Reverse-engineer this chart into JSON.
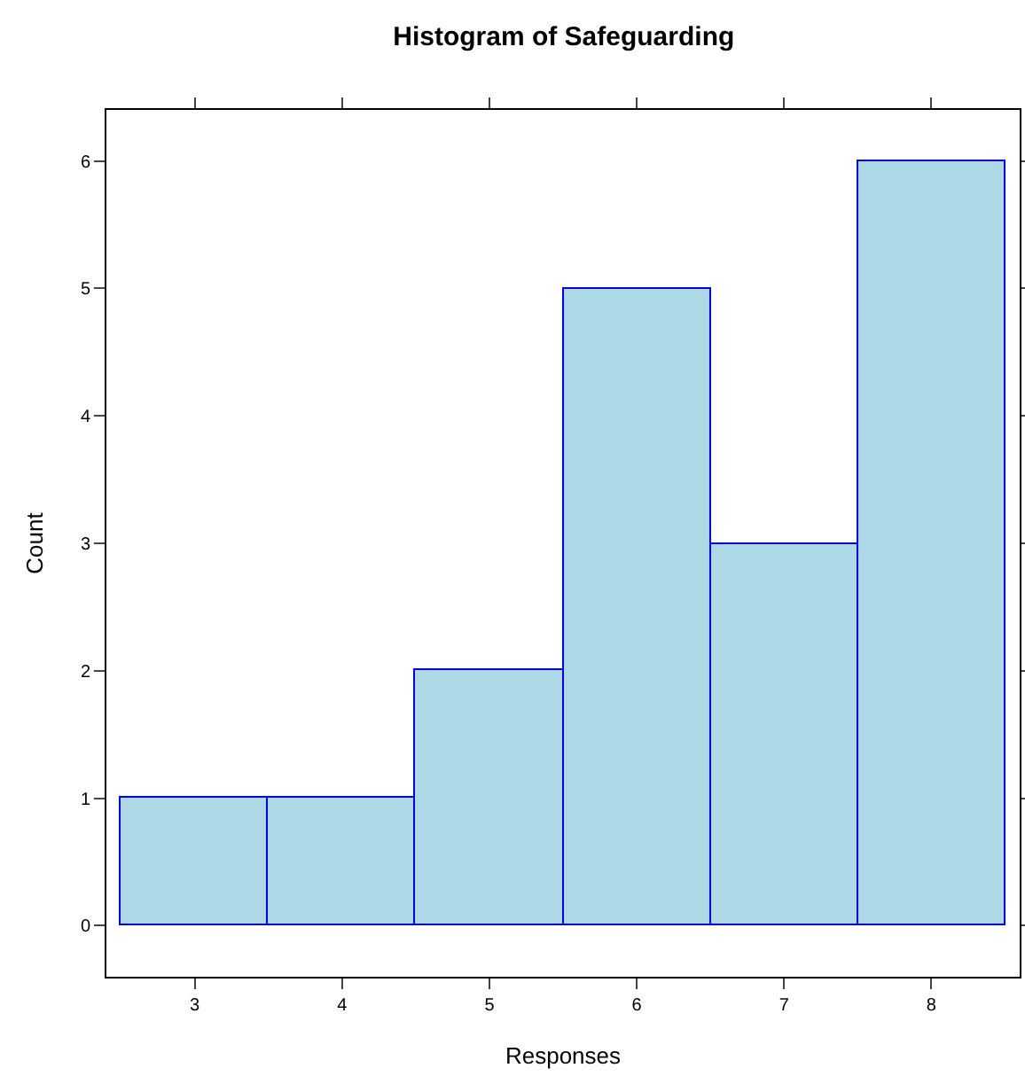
{
  "chart_data": {
    "type": "histogram",
    "title": "Histogram of Safeguarding",
    "xlabel": "Responses",
    "ylabel": "Count",
    "bins": [
      2.5,
      3.5,
      4.5,
      5.5,
      6.5,
      7.5,
      8.5
    ],
    "values": [
      1,
      1,
      2,
      5,
      3,
      6
    ],
    "color": "#add8e6",
    "xlim": [
      2.4,
      8.6
    ],
    "xticks": [
      3,
      4,
      5,
      6,
      7,
      8
    ],
    "ylim": [
      -0.4,
      6.4
    ],
    "yticks": [
      0,
      1,
      2,
      3,
      4,
      5,
      6
    ],
    "grid": false,
    "legend": false
  }
}
